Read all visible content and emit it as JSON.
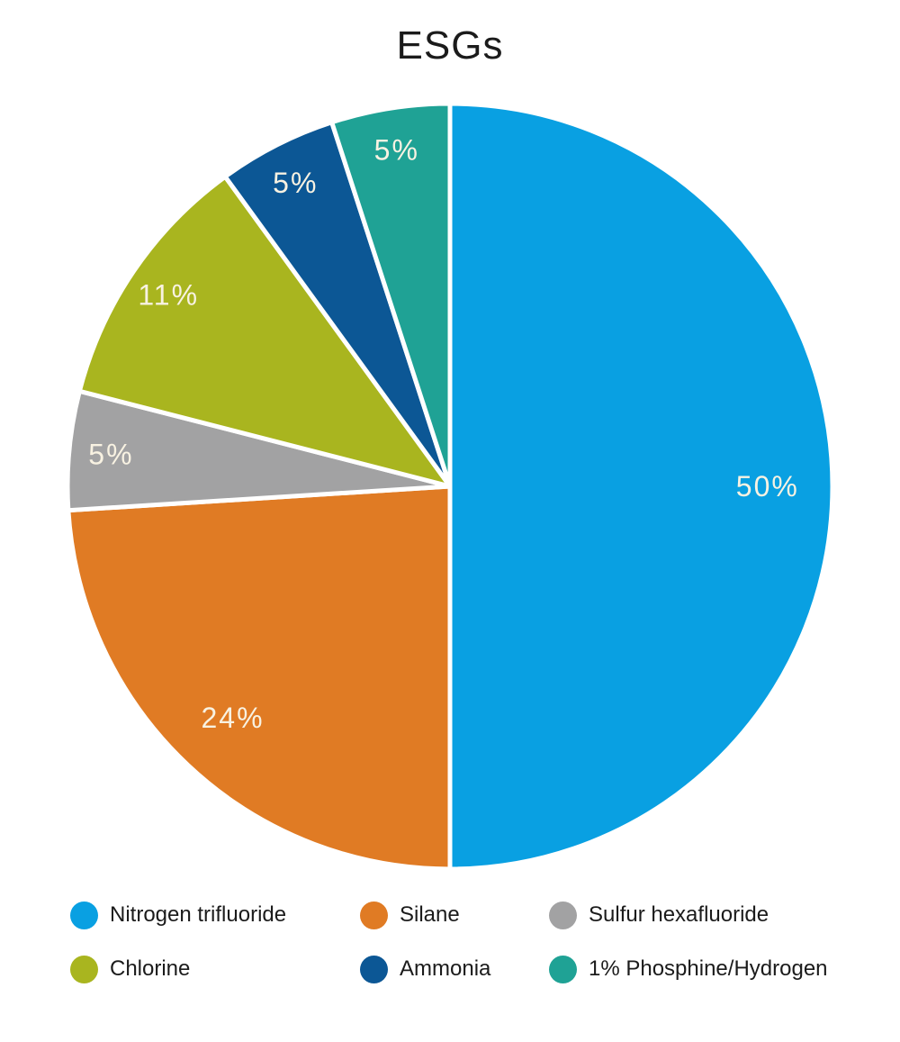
{
  "title": "ESGs",
  "chart_data": {
    "type": "pie",
    "title": "ESGs",
    "direction": "clockwise",
    "start_angle_deg": 0,
    "total": 100,
    "slice_label_color": "#f8f2e2",
    "slice_separator_color": "#ffffff",
    "legend_position": "bottom",
    "slices": [
      {
        "label": "Nitrogen trifluoride",
        "value": 50,
        "pct_label": "50%",
        "color": "#09a0e2"
      },
      {
        "label": "Silane",
        "value": 24,
        "pct_label": "24%",
        "color": "#e07b24"
      },
      {
        "label": "Sulfur hexafluoride",
        "value": 5,
        "pct_label": "5%",
        "color": "#a2a2a3"
      },
      {
        "label": "Chlorine",
        "value": 11,
        "pct_label": "11%",
        "color": "#a9b51f"
      },
      {
        "label": "Ammonia",
        "value": 5,
        "pct_label": "5%",
        "color": "#0c5795"
      },
      {
        "label": "1% Phosphine/Hydrogen",
        "value": 5,
        "pct_label": "5%",
        "color": "#1fa295"
      }
    ]
  }
}
